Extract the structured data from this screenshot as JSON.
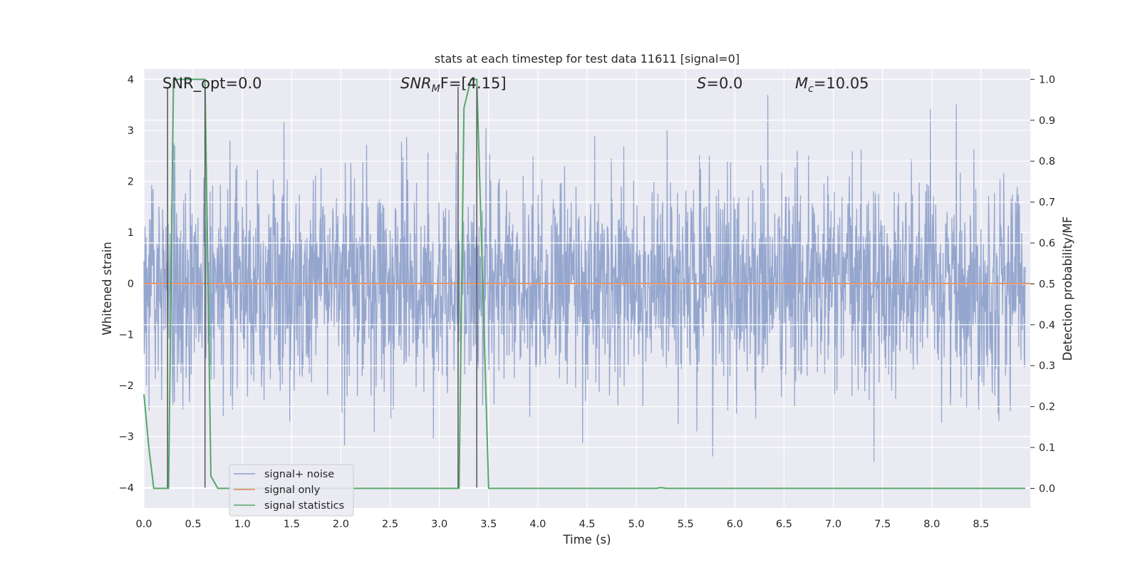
{
  "chart_data": {
    "type": "line",
    "title": "stats at each timestep for test data 11611 [signal=0]",
    "xlabel": "Time (s)",
    "ylabel": "Whitened strain",
    "y2label": "Detection probability/MF",
    "xlim": [
      0.0,
      9.0
    ],
    "ylim": [
      -4.4,
      4.2
    ],
    "y2lim": [
      -0.048,
      1.025
    ],
    "xticks": [
      "0.0",
      "0.5",
      "1.0",
      "1.5",
      "2.0",
      "2.5",
      "3.0",
      "3.5",
      "4.0",
      "4.5",
      "5.0",
      "5.5",
      "6.0",
      "6.5",
      "7.0",
      "7.5",
      "8.0",
      "8.5"
    ],
    "yticks": [
      "4",
      "3",
      "2",
      "1",
      "0",
      "−1",
      "−2",
      "−3",
      "−4"
    ],
    "y2ticks": [
      "1.0",
      "0.9",
      "0.8",
      "0.7",
      "0.6",
      "0.5",
      "0.4",
      "0.3",
      "0.2",
      "0.1",
      "0.0"
    ],
    "grid": true,
    "legend_position": "lower-left",
    "annotations": {
      "snr_opt": "SNR_opt=0.0",
      "snr_mf_main": "SNR",
      "snr_mf_sub": "M",
      "snr_mf_rest": "F=[4.15]",
      "s_main": "S",
      "s_rest": "=0.0",
      "mc_main": "M",
      "mc_sub": "c",
      "mc_rest": "=10.05"
    },
    "series": [
      {
        "name": "signal+ noise",
        "color": "#8c9fca",
        "description_values": "whitened noise, roughly within [-4, 3.8]",
        "amplitude_range": [
          -4.0,
          3.85
        ]
      },
      {
        "name": "signal only",
        "color": "#dd8452",
        "x": [
          0.0,
          9.0
        ],
        "y": [
          0.0,
          0.0
        ]
      },
      {
        "name": "signal statistics",
        "color": "#55a868",
        "axis": "right",
        "x": [
          0.0,
          0.05,
          0.1,
          0.25,
          0.3,
          0.62,
          0.68,
          0.75,
          3.2,
          3.25,
          3.32,
          3.38,
          3.5,
          5.2,
          5.25,
          5.3,
          8.95
        ],
        "y": [
          0.23,
          0.1,
          0.0,
          0.0,
          1.0,
          1.0,
          0.03,
          0.0,
          0.0,
          0.93,
          1.0,
          1.0,
          0.0,
          0.0,
          0.002,
          0.0,
          0.0
        ]
      }
    ],
    "vlines": [
      0.24,
      0.62,
      3.19,
      3.38
    ]
  }
}
